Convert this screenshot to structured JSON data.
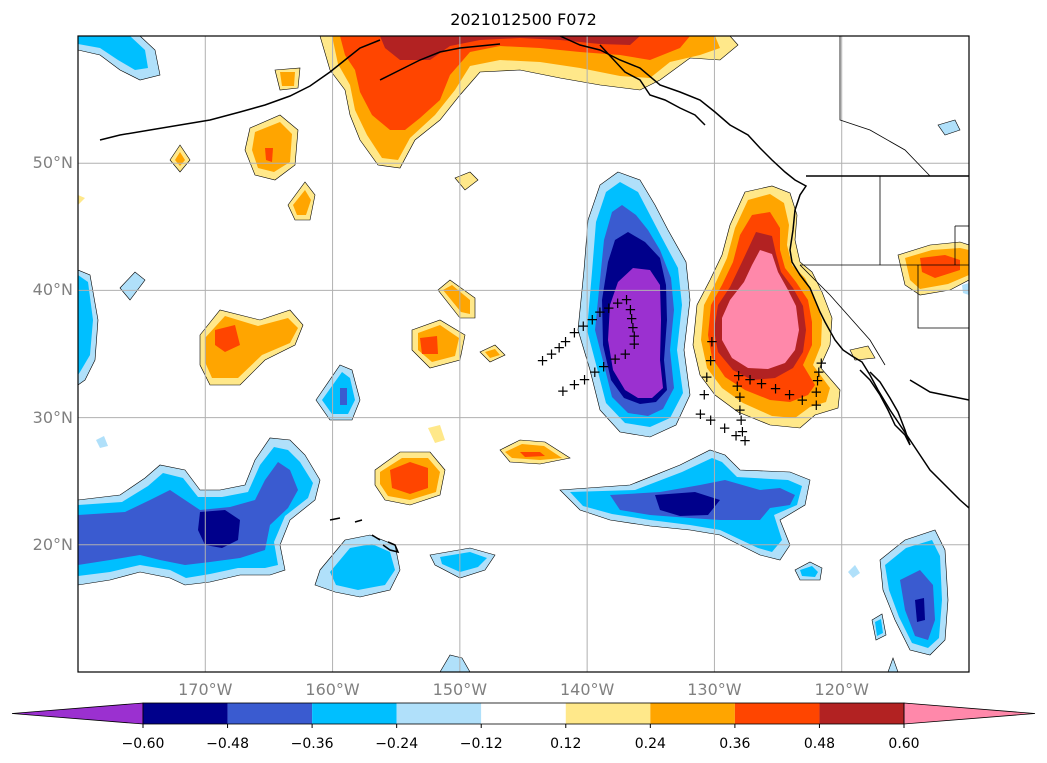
{
  "title": "2021012500 F072",
  "lat_ticks": [
    {
      "label": "50°N",
      "lat": 50
    },
    {
      "label": "40°N",
      "lat": 40
    },
    {
      "label": "30°N",
      "lat": 30
    },
    {
      "label": "20°N",
      "lat": 20
    }
  ],
  "lon_ticks": [
    {
      "label": "170°W",
      "lon": -170
    },
    {
      "label": "160°W",
      "lon": -160
    },
    {
      "label": "150°W",
      "lon": -150
    },
    {
      "label": "140°W",
      "lon": -140
    },
    {
      "label": "130°W",
      "lon": -130
    },
    {
      "label": "120°W",
      "lon": -120
    }
  ],
  "colorbar": {
    "levels": [
      "−0.60",
      "−0.48",
      "−0.36",
      "−0.24",
      "−0.12",
      "0.12",
      "0.24",
      "0.36",
      "0.48",
      "0.60"
    ],
    "colors": [
      "#9b30d0",
      "#00008b",
      "#3a5bd0",
      "#00bfff",
      "#b0e0fa",
      "#ffffff",
      "#ffe88a",
      "#ffa500",
      "#ff4500",
      "#b22222",
      "#ff88aa"
    ]
  },
  "map": {
    "extent": {
      "lon_min": -180,
      "lon_max": -110,
      "lat_min": 10,
      "lat_max": 60
    },
    "gridlines": true,
    "coastline_color": "#000000",
    "grid_color": "#b0b0b0"
  },
  "markers": {
    "symbol": "+",
    "points": [
      [
        -143.5,
        34.5
      ],
      [
        -142.8,
        35
      ],
      [
        -142.2,
        35.5
      ],
      [
        -141.7,
        36
      ],
      [
        -141,
        36.7
      ],
      [
        -140.3,
        37.2
      ],
      [
        -139.6,
        37.7
      ],
      [
        -139,
        38.3
      ],
      [
        -138.3,
        38.6
      ],
      [
        -137.6,
        39
      ],
      [
        -136.9,
        39.3
      ],
      [
        -136.6,
        38.5
      ],
      [
        -136.5,
        37.8
      ],
      [
        -136.4,
        37.1
      ],
      [
        -136.3,
        36.4
      ],
      [
        -136.3,
        35.8
      ],
      [
        -137,
        35
      ],
      [
        -137.8,
        34.6
      ],
      [
        -138.7,
        34
      ],
      [
        -139.4,
        33.6
      ],
      [
        -140.2,
        33
      ],
      [
        -141,
        32.6
      ],
      [
        -141.9,
        32.1
      ],
      [
        -130.2,
        36
      ],
      [
        -130.3,
        34.5
      ],
      [
        -130.6,
        33.2
      ],
      [
        -130.8,
        31.8
      ],
      [
        -131.1,
        30.3
      ],
      [
        -130.3,
        29.8
      ],
      [
        -129.2,
        29.2
      ],
      [
        -128.3,
        28.6
      ],
      [
        -127.6,
        28.2
      ],
      [
        -127.8,
        28.9
      ],
      [
        -127.9,
        29.8
      ],
      [
        -128,
        30.6
      ],
      [
        -128,
        31.6
      ],
      [
        -128.2,
        32.5
      ],
      [
        -128.1,
        33.3
      ],
      [
        -127.2,
        33
      ],
      [
        -126.3,
        32.7
      ],
      [
        -125.2,
        32.3
      ],
      [
        -124.1,
        31.8
      ],
      [
        -123.1,
        31.4
      ],
      [
        -122,
        31
      ],
      [
        -122,
        32
      ],
      [
        -121.9,
        32.9
      ],
      [
        -121.8,
        33.6
      ],
      [
        -121.6,
        34.3
      ]
    ]
  }
}
